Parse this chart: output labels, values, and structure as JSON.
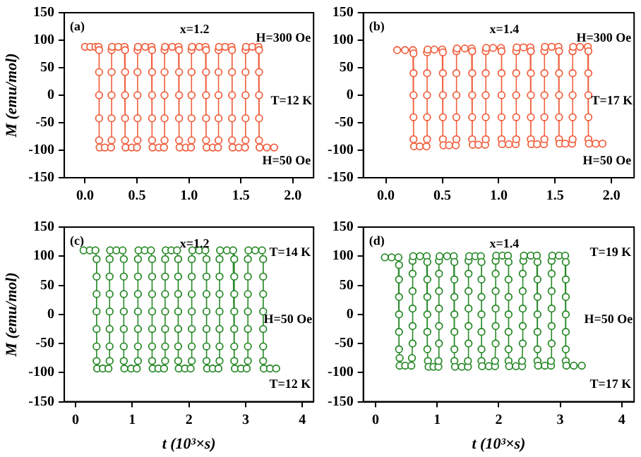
{
  "chart_data": [
    {
      "type": "line",
      "ylabel": "M (emu/mol)",
      "annotations": [
        "(a)",
        "x=1.2",
        "H=300 Oe",
        "T=12 K",
        "H=50 Oe"
      ],
      "xlim": [
        -0.2,
        2.2
      ],
      "ylim": [
        -150,
        150
      ],
      "xticks": [
        {
          "value": 0,
          "label": "0.0"
        },
        0.5,
        {
          "value": 1,
          "label": "1.0"
        },
        1.5,
        {
          "value": 2,
          "label": "2.0"
        }
      ],
      "yticks": [
        -150,
        -100,
        -50,
        0,
        50,
        100,
        150
      ],
      "marker": "circle",
      "series": [
        {
          "color": "#f0603f",
          "x": [
            0.0,
            0.05,
            0.1,
            0.13,
            0.135,
            0.135,
            0.135,
            0.135,
            0.135,
            0.14,
            0.19,
            0.25,
            0.255,
            0.255,
            0.255,
            0.255,
            0.255,
            0.26,
            0.32,
            0.38,
            0.385,
            0.385,
            0.385,
            0.385,
            0.385,
            0.39,
            0.45,
            0.5,
            0.505,
            0.505,
            0.505,
            0.505,
            0.505,
            0.51,
            0.58,
            0.64,
            0.645,
            0.645,
            0.645,
            0.645,
            0.645,
            0.65,
            0.71,
            0.76,
            0.765,
            0.765,
            0.765,
            0.765,
            0.765,
            0.77,
            0.84,
            0.9,
            0.905,
            0.905,
            0.905,
            0.905,
            0.905,
            0.91,
            0.97,
            1.02,
            1.025,
            1.025,
            1.025,
            1.025,
            1.025,
            1.03,
            1.1,
            1.16,
            1.165,
            1.165,
            1.165,
            1.165,
            1.165,
            1.17,
            1.23,
            1.28,
            1.285,
            1.285,
            1.285,
            1.285,
            1.285,
            1.29,
            1.35,
            1.41,
            1.415,
            1.415,
            1.415,
            1.415,
            1.415,
            1.42,
            1.48,
            1.54,
            1.545,
            1.545,
            1.545,
            1.545,
            1.545,
            1.55,
            1.61,
            1.67,
            1.675,
            1.675,
            1.675,
            1.675,
            1.675,
            1.68,
            1.75,
            1.82
          ],
          "values": [
            88,
            88,
            88,
            88,
            82,
            42,
            0,
            -42,
            -82,
            -95,
            -95,
            -95,
            -82,
            -42,
            0,
            42,
            82,
            88,
            88,
            88,
            82,
            42,
            0,
            -42,
            -82,
            -95,
            -95,
            -95,
            -82,
            -42,
            0,
            42,
            82,
            88,
            88,
            88,
            82,
            42,
            0,
            -42,
            -82,
            -95,
            -95,
            -95,
            -82,
            -42,
            0,
            42,
            82,
            88,
            88,
            88,
            82,
            42,
            0,
            -42,
            -82,
            -95,
            -95,
            -95,
            -82,
            -42,
            0,
            42,
            82,
            88,
            88,
            88,
            82,
            42,
            0,
            -42,
            -82,
            -95,
            -95,
            -95,
            -82,
            -42,
            0,
            42,
            82,
            88,
            88,
            88,
            82,
            42,
            0,
            -42,
            -82,
            -95,
            -95,
            -95,
            -82,
            -42,
            0,
            42,
            82,
            88,
            88,
            88,
            82,
            42,
            0,
            -42,
            -82,
            -95,
            -95,
            -95
          ]
        }
      ]
    },
    {
      "type": "line",
      "annotations": [
        "(b)",
        "x=1.4",
        "H=300 Oe",
        "T=17 K",
        "H=50 Oe"
      ],
      "xlim": [
        -0.2,
        2.2
      ],
      "ylim": [
        -150,
        150
      ],
      "xticks": [
        {
          "value": 0,
          "label": "0.0"
        },
        0.5,
        {
          "value": 1,
          "label": "1.0"
        },
        1.5,
        {
          "value": 2,
          "label": "2.0"
        }
      ],
      "yticks": [
        -150,
        -100,
        -50,
        0,
        50,
        100,
        150
      ],
      "marker": "circle",
      "series": [
        {
          "color": "#f0603f",
          "x": [
            0.1,
            0.17,
            0.24,
            0.245,
            0.245,
            0.245,
            0.245,
            0.245,
            0.25,
            0.3,
            0.36,
            0.365,
            0.365,
            0.365,
            0.365,
            0.365,
            0.37,
            0.43,
            0.5,
            0.505,
            0.505,
            0.505,
            0.505,
            0.505,
            0.51,
            0.56,
            0.62,
            0.625,
            0.625,
            0.625,
            0.625,
            0.625,
            0.63,
            0.7,
            0.76,
            0.765,
            0.765,
            0.765,
            0.765,
            0.765,
            0.77,
            0.82,
            0.88,
            0.885,
            0.885,
            0.885,
            0.885,
            0.885,
            0.89,
            0.95,
            1.02,
            1.025,
            1.025,
            1.025,
            1.025,
            1.025,
            1.03,
            1.09,
            1.15,
            1.155,
            1.155,
            1.155,
            1.155,
            1.155,
            1.16,
            1.22,
            1.28,
            1.285,
            1.285,
            1.285,
            1.285,
            1.285,
            1.29,
            1.34,
            1.4,
            1.405,
            1.405,
            1.405,
            1.405,
            1.405,
            1.41,
            1.47,
            1.53,
            1.535,
            1.535,
            1.535,
            1.535,
            1.535,
            1.54,
            1.59,
            1.65,
            1.655,
            1.655,
            1.655,
            1.655,
            1.655,
            1.66,
            1.72,
            1.79,
            1.795,
            1.795,
            1.795,
            1.795,
            1.795,
            1.8,
            1.86,
            1.92
          ],
          "values": [
            82,
            82,
            82,
            76,
            40,
            0,
            -40,
            -80,
            -93,
            -93,
            -93,
            -80,
            -40,
            0,
            40,
            78,
            83,
            83,
            83,
            78,
            40,
            0,
            -40,
            -80,
            -91,
            -91,
            -91,
            -80,
            -40,
            0,
            40,
            80,
            85,
            85,
            85,
            80,
            40,
            0,
            -40,
            -80,
            -90,
            -90,
            -90,
            -80,
            -40,
            0,
            40,
            80,
            86,
            86,
            86,
            80,
            40,
            0,
            -40,
            -80,
            -89,
            -89,
            -89,
            -80,
            -40,
            0,
            40,
            80,
            87,
            87,
            87,
            80,
            40,
            0,
            -40,
            -80,
            -89,
            -89,
            -89,
            -80,
            -40,
            0,
            40,
            80,
            88,
            88,
            88,
            80,
            40,
            0,
            -40,
            -80,
            -88,
            -88,
            -88,
            -80,
            -40,
            0,
            40,
            80,
            88,
            88,
            88,
            80,
            40,
            0,
            -40,
            -80,
            -88,
            -88,
            -88
          ]
        }
      ]
    },
    {
      "type": "line",
      "xlabel": "t (10³×s)",
      "ylabel": "M (emu/mol)",
      "annotations": [
        "(c)",
        "x=1.2",
        "T=14 K",
        "H=50 Oe",
        "T=12 K"
      ],
      "xlim": [
        -0.2,
        4.2
      ],
      "ylim": [
        -150,
        150
      ],
      "xticks": [
        0,
        1,
        2,
        3,
        4
      ],
      "yticks": [
        -150,
        -100,
        -50,
        0,
        50,
        100,
        150
      ],
      "marker": "circle",
      "series": [
        {
          "color": "#2a8a2a",
          "x": [
            0.14,
            0.25,
            0.35,
            0.37,
            0.37,
            0.37,
            0.37,
            0.37,
            0.37,
            0.37,
            0.38,
            0.48,
            0.58,
            0.6,
            0.6,
            0.6,
            0.6,
            0.6,
            0.6,
            0.6,
            0.61,
            0.72,
            0.83,
            0.85,
            0.85,
            0.85,
            0.85,
            0.85,
            0.85,
            0.85,
            0.86,
            0.98,
            1.08,
            1.1,
            1.1,
            1.1,
            1.1,
            1.1,
            1.1,
            1.1,
            1.11,
            1.22,
            1.33,
            1.35,
            1.35,
            1.35,
            1.35,
            1.35,
            1.35,
            1.35,
            1.36,
            1.46,
            1.56,
            1.58,
            1.58,
            1.58,
            1.58,
            1.58,
            1.58,
            1.58,
            1.59,
            1.69,
            1.79,
            1.81,
            1.81,
            1.81,
            1.81,
            1.81,
            1.81,
            1.81,
            1.82,
            1.93,
            2.03,
            2.05,
            2.05,
            2.05,
            2.05,
            2.05,
            2.05,
            2.05,
            2.06,
            2.18,
            2.29,
            2.31,
            2.31,
            2.31,
            2.31,
            2.31,
            2.31,
            2.31,
            2.32,
            2.42,
            2.52,
            2.54,
            2.54,
            2.54,
            2.54,
            2.54,
            2.54,
            2.54,
            2.55,
            2.67,
            2.78,
            2.8,
            2.8,
            2.8,
            2.8,
            2.8,
            2.8,
            2.8,
            2.81,
            2.92,
            3.02,
            3.04,
            3.04,
            3.04,
            3.04,
            3.04,
            3.04,
            3.04,
            3.05,
            3.17,
            3.29,
            3.31,
            3.31,
            3.31,
            3.31,
            3.31,
            3.31,
            3.31,
            3.32,
            3.43,
            3.54
          ],
          "values": [
            110,
            110,
            110,
            95,
            65,
            35,
            5,
            -25,
            -55,
            -80,
            -93,
            -93,
            -93,
            -80,
            -55,
            -25,
            5,
            35,
            65,
            95,
            110,
            110,
            110,
            95,
            65,
            35,
            5,
            -25,
            -55,
            -80,
            -93,
            -93,
            -93,
            -80,
            -55,
            -25,
            5,
            35,
            65,
            95,
            110,
            110,
            110,
            95,
            65,
            35,
            5,
            -25,
            -55,
            -80,
            -93,
            -93,
            -93,
            -80,
            -55,
            -25,
            5,
            35,
            65,
            95,
            110,
            110,
            110,
            95,
            65,
            35,
            5,
            -25,
            -55,
            -80,
            -93,
            -93,
            -93,
            -80,
            -55,
            -25,
            5,
            35,
            65,
            95,
            110,
            110,
            110,
            95,
            65,
            35,
            5,
            -25,
            -55,
            -80,
            -93,
            -93,
            -93,
            -80,
            -55,
            -25,
            5,
            35,
            65,
            95,
            110,
            110,
            110,
            95,
            65,
            35,
            5,
            -25,
            -55,
            -80,
            -93,
            -93,
            -93,
            -80,
            -55,
            -25,
            5,
            35,
            65,
            95,
            110,
            110,
            110,
            95,
            65,
            35,
            5,
            -25,
            -55,
            -80,
            -93,
            -93,
            -93
          ]
        }
      ]
    },
    {
      "type": "line",
      "xlabel": "t (10³×s)",
      "annotations": [
        "(d)",
        "x=1.4",
        "T=19 K",
        "H=50 Oe",
        "T=17 K"
      ],
      "xlim": [
        -0.2,
        4.2
      ],
      "ylim": [
        -150,
        150
      ],
      "xticks": [
        0,
        1,
        2,
        3,
        4
      ],
      "yticks": [
        -150,
        -100,
        -50,
        0,
        50,
        100,
        150
      ],
      "marker": "circle",
      "series": [
        {
          "color": "#2a8a2a",
          "x": [
            0.15,
            0.26,
            0.37,
            0.38,
            0.38,
            0.38,
            0.38,
            0.38,
            0.38,
            0.39,
            0.39,
            0.48,
            0.58,
            0.59,
            0.6,
            0.6,
            0.6,
            0.6,
            0.6,
            0.6,
            0.61,
            0.72,
            0.83,
            0.84,
            0.84,
            0.84,
            0.84,
            0.84,
            0.84,
            0.85,
            0.86,
            0.94,
            1.02,
            1.02,
            1.03,
            1.03,
            1.03,
            1.03,
            1.03,
            1.03,
            1.04,
            1.16,
            1.27,
            1.28,
            1.28,
            1.28,
            1.28,
            1.28,
            1.28,
            1.28,
            1.29,
            1.4,
            1.5,
            1.5,
            1.51,
            1.51,
            1.51,
            1.51,
            1.51,
            1.51,
            1.52,
            1.62,
            1.71,
            1.72,
            1.72,
            1.72,
            1.72,
            1.72,
            1.72,
            1.72,
            1.73,
            1.84,
            1.94,
            1.94,
            1.95,
            1.95,
            1.95,
            1.95,
            1.95,
            1.95,
            1.96,
            2.06,
            2.15,
            2.16,
            2.16,
            2.16,
            2.16,
            2.16,
            2.16,
            2.16,
            2.17,
            2.28,
            2.38,
            2.38,
            2.39,
            2.39,
            2.39,
            2.39,
            2.39,
            2.4,
            2.41,
            2.52,
            2.62,
            2.63,
            2.63,
            2.63,
            2.63,
            2.63,
            2.63,
            2.63,
            2.64,
            2.75,
            2.85,
            2.85,
            2.86,
            2.86,
            2.86,
            2.86,
            2.86,
            2.86,
            2.87,
            2.98,
            3.08,
            3.09,
            3.09,
            3.09,
            3.09,
            3.09,
            3.09,
            3.09,
            3.1,
            3.22,
            3.35
          ],
          "values": [
            98,
            98,
            98,
            85,
            60,
            30,
            0,
            -30,
            -60,
            -75,
            -88,
            -88,
            -88,
            -75,
            -50,
            -20,
            10,
            40,
            70,
            92,
            100,
            100,
            100,
            90,
            60,
            30,
            0,
            -30,
            -60,
            -80,
            -90,
            -90,
            -90,
            -80,
            -50,
            -20,
            10,
            40,
            70,
            92,
            100,
            100,
            100,
            90,
            60,
            30,
            0,
            -30,
            -60,
            -80,
            -90,
            -90,
            -90,
            -80,
            -50,
            -20,
            10,
            40,
            70,
            92,
            100,
            100,
            100,
            90,
            60,
            30,
            0,
            -30,
            -60,
            -80,
            -89,
            -89,
            -89,
            -80,
            -50,
            -20,
            10,
            40,
            70,
            92,
            101,
            101,
            101,
            90,
            60,
            30,
            0,
            -30,
            -60,
            -80,
            -89,
            -89,
            -89,
            -80,
            -50,
            -20,
            10,
            40,
            70,
            92,
            101,
            101,
            101,
            90,
            60,
            30,
            0,
            -30,
            -60,
            -80,
            -88,
            -88,
            -88,
            -80,
            -50,
            -20,
            10,
            40,
            70,
            92,
            101,
            101,
            101,
            90,
            60,
            30,
            0,
            -30,
            -60,
            -80,
            -88,
            -88,
            -88
          ]
        }
      ]
    }
  ]
}
